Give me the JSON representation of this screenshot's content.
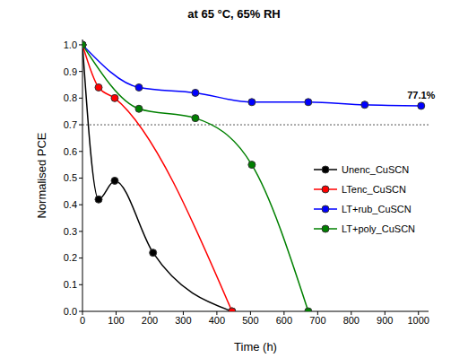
{
  "chart_data": {
    "type": "line",
    "title": "at 65 °C, 65% RH",
    "x_label": "Time (h)",
    "y_label": "Normalised PCE",
    "xlim": [
      0,
      1030
    ],
    "xticks": [
      0,
      100,
      200,
      300,
      400,
      500,
      600,
      700,
      800,
      900,
      1000
    ],
    "ylim": [
      0,
      1.02
    ],
    "yticks": [
      {
        "value": 0,
        "label": "0.0"
      },
      {
        "value": 0.1,
        "label": "0.1"
      },
      {
        "value": 0.2,
        "label": "0.2"
      },
      {
        "value": 0.3,
        "label": "0.3"
      },
      {
        "value": 0.4,
        "label": "0.4"
      },
      {
        "value": 0.5,
        "label": "0.5"
      },
      {
        "value": 0.6,
        "label": "0.6"
      },
      {
        "value": 0.7,
        "label": "0.7"
      },
      {
        "value": 0.8,
        "label": "0.8"
      },
      {
        "value": 0.9,
        "label": "0.9"
      },
      {
        "value": 1,
        "label": "1.0"
      }
    ],
    "grid": false,
    "legend": "center right",
    "hline": 0.7,
    "annotations": [
      {
        "text": "77.1%",
        "x": 1008,
        "y": 0.771
      }
    ],
    "series": [
      {
        "name": "Unenc_CuSCN",
        "color": "#000000",
        "marker": "circle",
        "x": [
          0,
          48,
          96,
          210,
          445
        ],
        "values": [
          1,
          0.42,
          0.49,
          0.22,
          0
        ]
      },
      {
        "name": "LTenc_CuSCN",
        "color": "#ff0000",
        "marker": "circle",
        "x": [
          0,
          48,
          96,
          445
        ],
        "values": [
          1,
          0.84,
          0.8,
          0
        ]
      },
      {
        "name": "LT+rub_CuSCN",
        "color": "#0000ff",
        "marker": "circle",
        "x": [
          0,
          168,
          336,
          504,
          672,
          840,
          1008
        ],
        "values": [
          1,
          0.84,
          0.82,
          0.785,
          0.785,
          0.775,
          0.771
        ]
      },
      {
        "name": "LT+poly_CuSCN",
        "color": "#008000",
        "marker": "circle",
        "x": [
          0,
          168,
          336,
          504,
          672
        ],
        "values": [
          1,
          0.76,
          0.725,
          0.55,
          0
        ]
      }
    ]
  }
}
